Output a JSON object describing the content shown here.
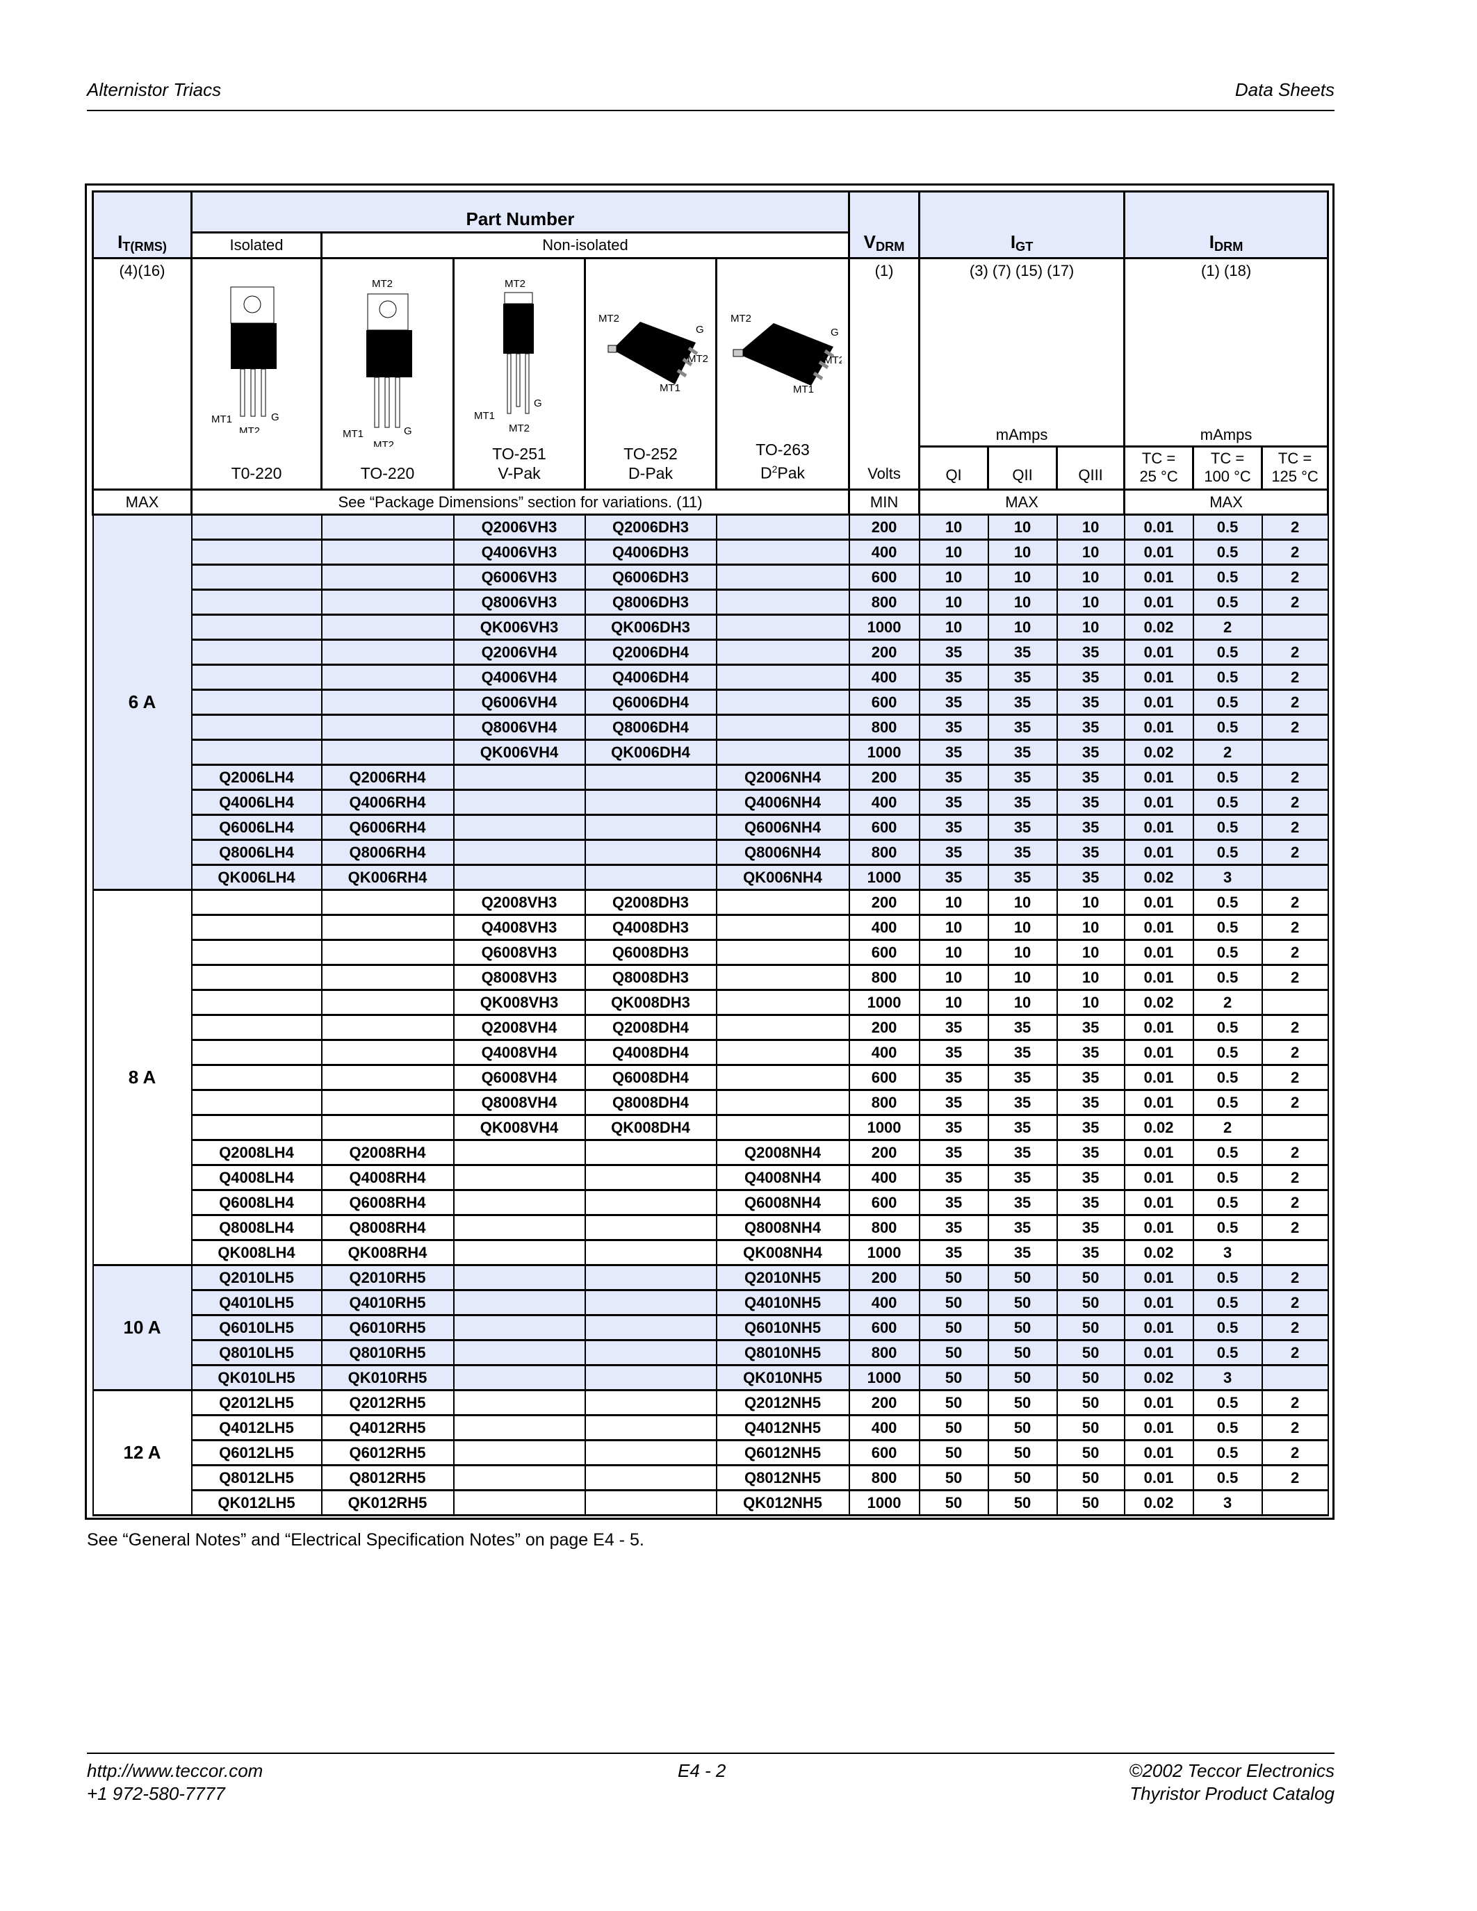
{
  "header": {
    "left": "Alternistor Triacs",
    "right": "Data Sheets"
  },
  "footer": {
    "url": "http://www.teccor.com",
    "phone": "+1 972-580-7777",
    "page": "E4 - 2",
    "copyright": "©2002 Teccor Electronics",
    "catalog": "Thyristor Product Catalog"
  },
  "table": {
    "col_it": "I",
    "col_it_sub": "T(RMS)",
    "part_number": "Part Number",
    "isolated": "Isolated",
    "non_isolated": "Non-isolated",
    "vdrm": "V",
    "vdrm_sub": "DRM",
    "igt": "I",
    "igt_sub": "GT",
    "idrm": "I",
    "idrm_sub": "DRM",
    "it_notes": "(4)(16)",
    "vdrm_notes": "(1)",
    "igt_notes": "(3) (7) (15) (17)",
    "idrm_notes": "(1) (18)",
    "igt_unit": "mAmps",
    "idrm_unit": "mAmps",
    "vdrm_unit": "Volts",
    "quadrants": [
      "QI",
      "QII",
      "QIII"
    ],
    "tc": [
      "TC =",
      "25 °C",
      "TC =",
      "100 °C",
      "TC =",
      "125 °C"
    ],
    "packages": [
      {
        "line1": "",
        "line2": "T0-220",
        "pins": [
          "MT1",
          "MT2",
          "G"
        ]
      },
      {
        "line1": "",
        "line2": "TO-220",
        "pins": [
          "MT1",
          "MT2",
          "G",
          "MT2"
        ]
      },
      {
        "line1": "TO-251",
        "line2": "V-Pak",
        "pins": [
          "MT1",
          "MT2",
          "G",
          "MT2"
        ]
      },
      {
        "line1": "TO-252",
        "line2": "D-Pak",
        "pins": [
          "MT2",
          "G",
          "MT2",
          "MT1"
        ]
      },
      {
        "line1": "TO-263",
        "line2": "D",
        "line2_sup": "2",
        "line2_tail": "Pak",
        "pins": [
          "MT2",
          "G",
          "MT2",
          "MT1"
        ]
      }
    ],
    "limit_row": {
      "it": "MAX",
      "pkg": "See “Package Dimensions” section for variations. (11)",
      "vdrm": "MIN",
      "igt": "MAX",
      "idrm": "MAX"
    },
    "groups": [
      {
        "current": "6 A",
        "shaded": true,
        "rows": [
          [
            "",
            "",
            "Q2006VH3",
            "Q2006DH3",
            "",
            "200",
            "10",
            "10",
            "10",
            "0.01",
            "0.5",
            "2"
          ],
          [
            "",
            "",
            "Q4006VH3",
            "Q4006DH3",
            "",
            "400",
            "10",
            "10",
            "10",
            "0.01",
            "0.5",
            "2"
          ],
          [
            "",
            "",
            "Q6006VH3",
            "Q6006DH3",
            "",
            "600",
            "10",
            "10",
            "10",
            "0.01",
            "0.5",
            "2"
          ],
          [
            "",
            "",
            "Q8006VH3",
            "Q8006DH3",
            "",
            "800",
            "10",
            "10",
            "10",
            "0.01",
            "0.5",
            "2"
          ],
          [
            "",
            "",
            "QK006VH3",
            "QK006DH3",
            "",
            "1000",
            "10",
            "10",
            "10",
            "0.02",
            "2",
            ""
          ],
          [
            "",
            "",
            "Q2006VH4",
            "Q2006DH4",
            "",
            "200",
            "35",
            "35",
            "35",
            "0.01",
            "0.5",
            "2"
          ],
          [
            "",
            "",
            "Q4006VH4",
            "Q4006DH4",
            "",
            "400",
            "35",
            "35",
            "35",
            "0.01",
            "0.5",
            "2"
          ],
          [
            "",
            "",
            "Q6006VH4",
            "Q6006DH4",
            "",
            "600",
            "35",
            "35",
            "35",
            "0.01",
            "0.5",
            "2"
          ],
          [
            "",
            "",
            "Q8006VH4",
            "Q8006DH4",
            "",
            "800",
            "35",
            "35",
            "35",
            "0.01",
            "0.5",
            "2"
          ],
          [
            "",
            "",
            "QK006VH4",
            "QK006DH4",
            "",
            "1000",
            "35",
            "35",
            "35",
            "0.02",
            "2",
            ""
          ],
          [
            "Q2006LH4",
            "Q2006RH4",
            "",
            "",
            "Q2006NH4",
            "200",
            "35",
            "35",
            "35",
            "0.01",
            "0.5",
            "2"
          ],
          [
            "Q4006LH4",
            "Q4006RH4",
            "",
            "",
            "Q4006NH4",
            "400",
            "35",
            "35",
            "35",
            "0.01",
            "0.5",
            "2"
          ],
          [
            "Q6006LH4",
            "Q6006RH4",
            "",
            "",
            "Q6006NH4",
            "600",
            "35",
            "35",
            "35",
            "0.01",
            "0.5",
            "2"
          ],
          [
            "Q8006LH4",
            "Q8006RH4",
            "",
            "",
            "Q8006NH4",
            "800",
            "35",
            "35",
            "35",
            "0.01",
            "0.5",
            "2"
          ],
          [
            "QK006LH4",
            "QK006RH4",
            "",
            "",
            "QK006NH4",
            "1000",
            "35",
            "35",
            "35",
            "0.02",
            "3",
            ""
          ]
        ]
      },
      {
        "current": "8 A",
        "shaded": false,
        "rows": [
          [
            "",
            "",
            "Q2008VH3",
            "Q2008DH3",
            "",
            "200",
            "10",
            "10",
            "10",
            "0.01",
            "0.5",
            "2"
          ],
          [
            "",
            "",
            "Q4008VH3",
            "Q4008DH3",
            "",
            "400",
            "10",
            "10",
            "10",
            "0.01",
            "0.5",
            "2"
          ],
          [
            "",
            "",
            "Q6008VH3",
            "Q6008DH3",
            "",
            "600",
            "10",
            "10",
            "10",
            "0.01",
            "0.5",
            "2"
          ],
          [
            "",
            "",
            "Q8008VH3",
            "Q8008DH3",
            "",
            "800",
            "10",
            "10",
            "10",
            "0.01",
            "0.5",
            "2"
          ],
          [
            "",
            "",
            "QK008VH3",
            "QK008DH3",
            "",
            "1000",
            "10",
            "10",
            "10",
            "0.02",
            "2",
            ""
          ],
          [
            "",
            "",
            "Q2008VH4",
            "Q2008DH4",
            "",
            "200",
            "35",
            "35",
            "35",
            "0.01",
            "0.5",
            "2"
          ],
          [
            "",
            "",
            "Q4008VH4",
            "Q4008DH4",
            "",
            "400",
            "35",
            "35",
            "35",
            "0.01",
            "0.5",
            "2"
          ],
          [
            "",
            "",
            "Q6008VH4",
            "Q6008DH4",
            "",
            "600",
            "35",
            "35",
            "35",
            "0.01",
            "0.5",
            "2"
          ],
          [
            "",
            "",
            "Q8008VH4",
            "Q8008DH4",
            "",
            "800",
            "35",
            "35",
            "35",
            "0.01",
            "0.5",
            "2"
          ],
          [
            "",
            "",
            "QK008VH4",
            "QK008DH4",
            "",
            "1000",
            "35",
            "35",
            "35",
            "0.02",
            "2",
            ""
          ],
          [
            "Q2008LH4",
            "Q2008RH4",
            "",
            "",
            "Q2008NH4",
            "200",
            "35",
            "35",
            "35",
            "0.01",
            "0.5",
            "2"
          ],
          [
            "Q4008LH4",
            "Q4008RH4",
            "",
            "",
            "Q4008NH4",
            "400",
            "35",
            "35",
            "35",
            "0.01",
            "0.5",
            "2"
          ],
          [
            "Q6008LH4",
            "Q6008RH4",
            "",
            "",
            "Q6008NH4",
            "600",
            "35",
            "35",
            "35",
            "0.01",
            "0.5",
            "2"
          ],
          [
            "Q8008LH4",
            "Q8008RH4",
            "",
            "",
            "Q8008NH4",
            "800",
            "35",
            "35",
            "35",
            "0.01",
            "0.5",
            "2"
          ],
          [
            "QK008LH4",
            "QK008RH4",
            "",
            "",
            "QK008NH4",
            "1000",
            "35",
            "35",
            "35",
            "0.02",
            "3",
            ""
          ]
        ]
      },
      {
        "current": "10 A",
        "shaded": true,
        "rows": [
          [
            "Q2010LH5",
            "Q2010RH5",
            "",
            "",
            "Q2010NH5",
            "200",
            "50",
            "50",
            "50",
            "0.01",
            "0.5",
            "2"
          ],
          [
            "Q4010LH5",
            "Q4010RH5",
            "",
            "",
            "Q4010NH5",
            "400",
            "50",
            "50",
            "50",
            "0.01",
            "0.5",
            "2"
          ],
          [
            "Q6010LH5",
            "Q6010RH5",
            "",
            "",
            "Q6010NH5",
            "600",
            "50",
            "50",
            "50",
            "0.01",
            "0.5",
            "2"
          ],
          [
            "Q8010LH5",
            "Q8010RH5",
            "",
            "",
            "Q8010NH5",
            "800",
            "50",
            "50",
            "50",
            "0.01",
            "0.5",
            "2"
          ],
          [
            "QK010LH5",
            "QK010RH5",
            "",
            "",
            "QK010NH5",
            "1000",
            "50",
            "50",
            "50",
            "0.02",
            "3",
            ""
          ]
        ]
      },
      {
        "current": "12 A",
        "shaded": false,
        "rows": [
          [
            "Q2012LH5",
            "Q2012RH5",
            "",
            "",
            "Q2012NH5",
            "200",
            "50",
            "50",
            "50",
            "0.01",
            "0.5",
            "2"
          ],
          [
            "Q4012LH5",
            "Q4012RH5",
            "",
            "",
            "Q4012NH5",
            "400",
            "50",
            "50",
            "50",
            "0.01",
            "0.5",
            "2"
          ],
          [
            "Q6012LH5",
            "Q6012RH5",
            "",
            "",
            "Q6012NH5",
            "600",
            "50",
            "50",
            "50",
            "0.01",
            "0.5",
            "2"
          ],
          [
            "Q8012LH5",
            "Q8012RH5",
            "",
            "",
            "Q8012NH5",
            "800",
            "50",
            "50",
            "50",
            "0.01",
            "0.5",
            "2"
          ],
          [
            "QK012LH5",
            "QK012RH5",
            "",
            "",
            "QK012NH5",
            "1000",
            "50",
            "50",
            "50",
            "0.02",
            "3",
            ""
          ]
        ]
      }
    ]
  },
  "note": "See “General Notes”  and “Electrical Specification Notes” on page E4 - 5.",
  "colors": {
    "header_fill": "#e4e9fb",
    "shaded_group_fill": "#e4e9fb",
    "rule": "#000000"
  }
}
